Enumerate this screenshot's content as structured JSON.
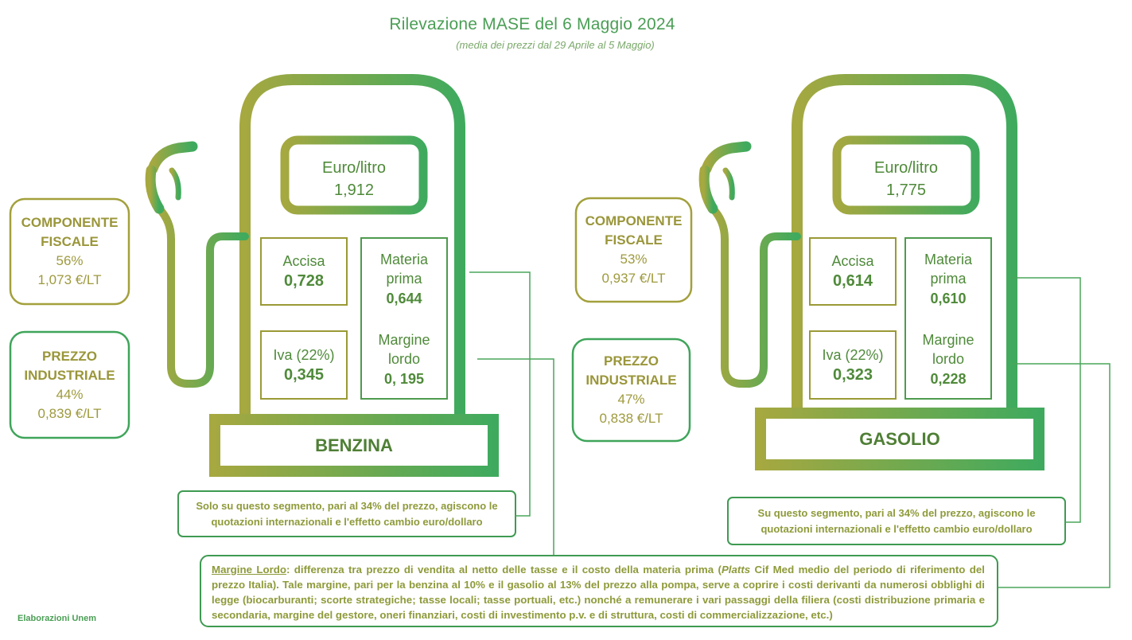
{
  "header": {
    "title": "Rilevazione MASE del 6 Maggio 2024",
    "subtitle": "(media dei prezzi dal 29 Aprile al 5 Maggio)"
  },
  "pumps": [
    {
      "fuel": "BENZINA",
      "price_label": "Euro/litro",
      "price_value": "1,912",
      "accisa_label": "Accisa",
      "accisa_value": "0,728",
      "iva_label": "Iva (22%)",
      "iva_value": "0,345",
      "materia_label_1": "Materia",
      "materia_label_2": "prima",
      "materia_value": "0,644",
      "margine_label_1": "Margine",
      "margine_label_2": "lordo",
      "margine_value": "0, 195",
      "fiscale": {
        "line1": "COMPONENTE",
        "line2": "FISCALE",
        "pct": "56%",
        "eur": "1,073 €/LT"
      },
      "industriale": {
        "line1": "PREZZO",
        "line2": "INDUSTRIALE",
        "pct": "44%",
        "eur": "0,839 €/LT"
      },
      "note_line1": "Solo su questo segmento, pari al 34% del prezzo, agiscono le",
      "note_line2": "quotazioni internazionali e l'effetto cambio euro/dollaro"
    },
    {
      "fuel": "GASOLIO",
      "price_label": "Euro/litro",
      "price_value": "1,775",
      "accisa_label": "Accisa",
      "accisa_value": "0,614",
      "iva_label": "Iva (22%)",
      "iva_value": "0,323",
      "materia_label_1": "Materia",
      "materia_label_2": "prima",
      "materia_value": "0,610",
      "margine_label_1": "Margine",
      "margine_label_2": "lordo",
      "margine_value": "0,228",
      "fiscale": {
        "line1": "COMPONENTE",
        "line2": "FISCALE",
        "pct": "53%",
        "eur": "0,937 €/LT"
      },
      "industriale": {
        "line1": "PREZZO",
        "line2": "INDUSTRIALE",
        "pct": "47%",
        "eur": "0,838 €/LT"
      },
      "note_line1": "Su questo segmento, pari al 34% del prezzo, agiscono le",
      "note_line2": "quotazioni internazionali e l'effetto cambio euro/dollaro"
    }
  ],
  "margin_note": {
    "term": "Margine Lordo",
    "p1": ": differenza tra prezzo di vendita al netto delle tasse e il costo della materia prima (",
    "platts": "Platts",
    "p2": " Cif Med medio del periodo di riferimento del prezzo Italia). Tale margine, pari per la benzina al 10% e il gasolio al 13% del prezzo alla pompa, serve a coprire i costi derivanti da numerosi obblighi di legge (biocarburanti; scorte strategiche; tasse locali; tasse portuali, etc.) nonché a remunerare i vari passaggi della filiera (costi distribuzione primaria e secondaria, margine del gestore, oneri finanziari, costi di investimento p.v. e di struttura, costi di commercializzazione, etc.)"
  },
  "credit": "Elaborazioni Unem",
  "colors": {
    "olive": "#a5a53e",
    "green": "#45a85c"
  }
}
